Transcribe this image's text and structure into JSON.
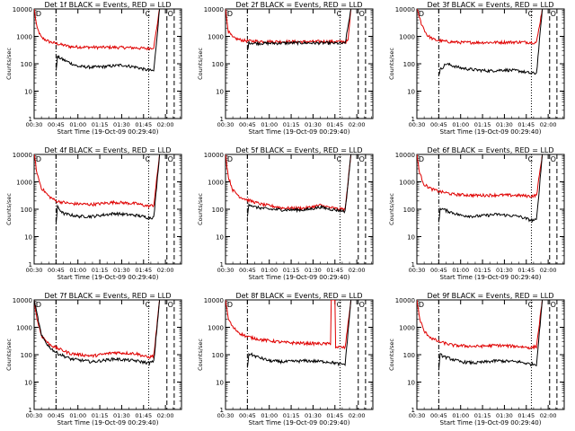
{
  "chart_data": [
    {
      "type": "line",
      "title": "Det 1f BLACK = Events, RED = LLD",
      "xlabel": "Start Time (19-Oct-09 00:29:40)",
      "ylabel": "Counts/sec",
      "x_ticks": [
        "00:30",
        "00:45",
        "01:00",
        "01:15",
        "01:30",
        "01:45",
        "02:00"
      ],
      "y_ticks": [
        "1",
        "10",
        "100",
        "1000",
        "10000"
      ],
      "y_scale": "log",
      "ylim": [
        1,
        10000
      ],
      "xlim_min": [
        30,
        131
      ],
      "corner_markers": [
        "D",
        "C",
        "O"
      ],
      "vertical_markers_min": {
        "dash_dot": 45,
        "dotted": 108.5,
        "dashed": [
          121,
          126
        ]
      },
      "series": [
        {
          "name": "LLD",
          "color": "#e00000",
          "x": [
            30,
            32,
            35,
            40,
            45,
            55,
            70,
            85,
            100,
            108,
            112,
            116
          ],
          "y": [
            10000,
            2000,
            900,
            650,
            550,
            420,
            400,
            400,
            380,
            360,
            400,
            10000
          ]
        },
        {
          "name": "Events",
          "color": "#000000",
          "x": [
            45,
            46,
            50,
            60,
            70,
            80,
            90,
            100,
            107,
            112,
            116
          ],
          "y": [
            60,
            180,
            140,
            80,
            75,
            80,
            90,
            75,
            60,
            55,
            10000
          ]
        }
      ]
    },
    {
      "type": "line",
      "title": "Det 2f BLACK = Events, RED = LLD",
      "xlabel": "Start Time (19-Oct-09 00:29:40)",
      "ylabel": "Counts/sec",
      "x_ticks": [
        "00:30",
        "00:45",
        "01:00",
        "01:15",
        "01:30",
        "01:45",
        "02:00"
      ],
      "y_ticks": [
        "1",
        "10",
        "100",
        "1000",
        "10000"
      ],
      "y_scale": "log",
      "ylim": [
        1,
        10000
      ],
      "xlim_min": [
        30,
        131
      ],
      "corner_markers": [
        "D",
        "C",
        "O"
      ],
      "vertical_markers_min": {
        "dash_dot": 45,
        "dotted": 108.5,
        "dashed": [
          121,
          126
        ]
      },
      "series": [
        {
          "name": "LLD",
          "color": "#e00000",
          "x": [
            30,
            32,
            35,
            40,
            45,
            60,
            80,
            100,
            112,
            114,
            116
          ],
          "y": [
            10000,
            1500,
            900,
            750,
            680,
            650,
            640,
            650,
            640,
            700,
            10000
          ]
        },
        {
          "name": "Events",
          "color": "#000000",
          "x": [
            45,
            46,
            50,
            60,
            80,
            100,
            112,
            116
          ],
          "y": [
            300,
            600,
            560,
            560,
            580,
            570,
            550,
            10000
          ]
        }
      ]
    },
    {
      "type": "line",
      "title": "Det 3f BLACK = Events, RED = LLD",
      "xlabel": "Start Time (19-Oct-09 00:29:40)",
      "ylabel": "Counts/sec",
      "x_ticks": [
        "00:30",
        "00:45",
        "01:00",
        "01:15",
        "01:30",
        "01:45",
        "02:00"
      ],
      "y_ticks": [
        "1",
        "10",
        "100",
        "1000",
        "10000"
      ],
      "y_scale": "log",
      "ylim": [
        1,
        10000
      ],
      "xlim_min": [
        30,
        131
      ],
      "corner_markers": [
        "D",
        "C",
        "O"
      ],
      "vertical_markers_min": {
        "dash_dot": 45,
        "dotted": 108.5,
        "dashed": [
          121,
          126
        ]
      },
      "series": [
        {
          "name": "LLD",
          "color": "#e00000",
          "x": [
            30,
            33,
            37,
            42,
            50,
            60,
            80,
            100,
            112,
            116
          ],
          "y": [
            10000,
            3000,
            1100,
            750,
            650,
            600,
            600,
            620,
            600,
            10000
          ]
        },
        {
          "name": "Events",
          "color": "#000000",
          "x": [
            45,
            46,
            50,
            60,
            70,
            80,
            90,
            100,
            108,
            112,
            116
          ],
          "y": [
            40,
            60,
            100,
            70,
            60,
            55,
            60,
            55,
            45,
            45,
            10000
          ]
        }
      ]
    },
    {
      "type": "line",
      "title": "Det 4f BLACK = Events, RED = LLD",
      "xlabel": "Start Time (19-Oct-09 00:29:40)",
      "ylabel": "Counts/sec",
      "x_ticks": [
        "00:30",
        "00:45",
        "01:00",
        "01:15",
        "01:30",
        "01:45",
        "02:00"
      ],
      "y_ticks": [
        "1",
        "10",
        "100",
        "1000",
        "10000"
      ],
      "y_scale": "log",
      "ylim": [
        1,
        10000
      ],
      "xlim_min": [
        30,
        131
      ],
      "corner_markers": [
        "D",
        "C",
        "O"
      ],
      "vertical_markers_min": {
        "dash_dot": 45,
        "dotted": 108.5,
        "dashed": [
          121,
          126
        ]
      },
      "series": [
        {
          "name": "LLD",
          "color": "#e00000",
          "x": [
            30,
            32,
            35,
            40,
            45,
            55,
            70,
            85,
            100,
            108,
            112,
            116
          ],
          "y": [
            10000,
            2000,
            600,
            300,
            200,
            160,
            150,
            180,
            160,
            130,
            140,
            10000
          ]
        },
        {
          "name": "Events",
          "color": "#000000",
          "x": [
            45,
            46,
            50,
            60,
            70,
            85,
            100,
            108,
            112,
            116
          ],
          "y": [
            30,
            120,
            70,
            55,
            55,
            70,
            60,
            50,
            50,
            10000
          ]
        }
      ]
    },
    {
      "type": "line",
      "title": "Det 5f BLACK = Events, RED = LLD",
      "xlabel": "Start Time (19-Oct-09 00:29:40)",
      "ylabel": "Counts/sec",
      "x_ticks": [
        "00:30",
        "00:45",
        "01:00",
        "01:15",
        "01:30",
        "01:45",
        "02:00"
      ],
      "y_ticks": [
        "1",
        "10",
        "100",
        "1000",
        "10000"
      ],
      "y_scale": "log",
      "ylim": [
        1,
        10000
      ],
      "xlim_min": [
        30,
        131
      ],
      "corner_markers": [
        "D",
        "C",
        "O"
      ],
      "vertical_markers_min": {
        "dash_dot": 45,
        "dotted": 108.5,
        "dashed": [
          121,
          126
        ]
      },
      "series": [
        {
          "name": "LLD",
          "color": "#e00000",
          "x": [
            30,
            32,
            35,
            40,
            45,
            55,
            70,
            85,
            95,
            100,
            108,
            112,
            116
          ],
          "y": [
            10000,
            1500,
            500,
            280,
            220,
            150,
            110,
            110,
            140,
            120,
            100,
            100,
            10000
          ]
        },
        {
          "name": "Events",
          "color": "#000000",
          "x": [
            45,
            46,
            50,
            60,
            70,
            85,
            95,
            100,
            108,
            112,
            116
          ],
          "y": [
            50,
            160,
            120,
            100,
            95,
            95,
            120,
            105,
            90,
            85,
            10000
          ]
        }
      ]
    },
    {
      "type": "line",
      "title": "Det 6f BLACK = Events, RED = LLD",
      "xlabel": "Start Time (19-Oct-09 00:29:40)",
      "ylabel": "Counts/sec",
      "x_ticks": [
        "00:30",
        "00:45",
        "01:00",
        "01:15",
        "01:30",
        "01:45",
        "02:00"
      ],
      "y_ticks": [
        "1",
        "10",
        "100",
        "1000",
        "10000"
      ],
      "y_scale": "log",
      "ylim": [
        1,
        10000
      ],
      "xlim_min": [
        30,
        131
      ],
      "corner_markers": [
        "D",
        "C",
        "O"
      ],
      "vertical_markers_min": {
        "dash_dot": 45,
        "dotted": 108.5,
        "dashed": [
          121,
          126
        ]
      },
      "series": [
        {
          "name": "LLD",
          "color": "#e00000",
          "x": [
            30,
            32,
            35,
            40,
            45,
            55,
            70,
            85,
            100,
            108,
            112,
            116
          ],
          "y": [
            10000,
            2000,
            800,
            550,
            450,
            350,
            320,
            330,
            320,
            300,
            320,
            10000
          ]
        },
        {
          "name": "Events",
          "color": "#000000",
          "x": [
            45,
            46,
            50,
            60,
            70,
            85,
            100,
            108,
            112,
            116
          ],
          "y": [
            30,
            110,
            90,
            60,
            55,
            65,
            55,
            40,
            40,
            10000
          ]
        }
      ]
    },
    {
      "type": "line",
      "title": "Det 7f BLACK = Events, RED = LLD",
      "xlabel": "Start Time (19-Oct-09 00:29:40)",
      "ylabel": "Counts/sec",
      "x_ticks": [
        "00:30",
        "00:45",
        "01:00",
        "01:15",
        "01:30",
        "01:45",
        "02:00"
      ],
      "y_ticks": [
        "1",
        "10",
        "100",
        "1000",
        "10000"
      ],
      "y_scale": "log",
      "ylim": [
        1,
        10000
      ],
      "xlim_min": [
        30,
        131
      ],
      "corner_markers": [
        "D",
        "C",
        "O"
      ],
      "vertical_markers_min": {
        "dash_dot": 45,
        "dotted": 108.5,
        "dashed": [
          121,
          126
        ]
      },
      "series": [
        {
          "name": "LLD",
          "color": "#e00000",
          "x": [
            30,
            32,
            35,
            40,
            45,
            55,
            70,
            85,
            100,
            108,
            112,
            116
          ],
          "y": [
            10000,
            2000,
            500,
            250,
            180,
            110,
            90,
            120,
            110,
            80,
            90,
            10000
          ]
        },
        {
          "name": "Events",
          "color": "#000000",
          "x": [
            30,
            35,
            40,
            45,
            55,
            70,
            85,
            100,
            108,
            112,
            116
          ],
          "y": [
            10000,
            500,
            200,
            120,
            70,
            55,
            70,
            60,
            50,
            55,
            10000
          ]
        }
      ]
    },
    {
      "type": "line",
      "title": "Det 8f BLACK = Events, RED = LLD",
      "xlabel": "Start Time (19-Oct-09 00:29:40)",
      "ylabel": "Counts/sec",
      "x_ticks": [
        "00:30",
        "00:45",
        "01:00",
        "01:15",
        "01:30",
        "01:45",
        "02:00"
      ],
      "y_ticks": [
        "1",
        "10",
        "100",
        "1000",
        "10000"
      ],
      "y_scale": "log",
      "ylim": [
        1,
        10000
      ],
      "xlim_min": [
        30,
        131
      ],
      "corner_markers": [
        "D",
        "C",
        "O"
      ],
      "vertical_markers_min": {
        "dash_dot": 45,
        "dotted": 108.5,
        "dashed": [
          121,
          126
        ]
      },
      "series": [
        {
          "name": "LLD",
          "color": "#e00000",
          "x": [
            30,
            32,
            35,
            40,
            45,
            55,
            70,
            85,
            100,
            102,
            102.5,
            104,
            105,
            105.5,
            112,
            116
          ],
          "y": [
            10000,
            2000,
            1000,
            600,
            450,
            350,
            280,
            260,
            250,
            250,
            10000,
            10000,
            10000,
            190,
            180,
            10000
          ]
        },
        {
          "name": "Events",
          "color": "#000000",
          "x": [
            45,
            46,
            50,
            60,
            70,
            85,
            100,
            105,
            108,
            112,
            116
          ],
          "y": [
            30,
            110,
            90,
            60,
            55,
            60,
            55,
            50,
            45,
            45,
            10000
          ]
        }
      ]
    },
    {
      "type": "line",
      "title": "Det 9f BLACK = Events, RED = LLD",
      "xlabel": "Start Time (19-Oct-09 00:29:40)",
      "ylabel": "Counts/sec",
      "x_ticks": [
        "00:30",
        "00:45",
        "01:00",
        "01:15",
        "01:30",
        "01:45",
        "02:00"
      ],
      "y_ticks": [
        "1",
        "10",
        "100",
        "1000",
        "10000"
      ],
      "y_scale": "log",
      "ylim": [
        1,
        10000
      ],
      "xlim_min": [
        30,
        131
      ],
      "corner_markers": [
        "D",
        "C",
        "O"
      ],
      "vertical_markers_min": {
        "dash_dot": 45,
        "dotted": 108.5,
        "dashed": [
          121,
          126
        ]
      },
      "series": [
        {
          "name": "LLD",
          "color": "#e00000",
          "x": [
            30,
            32,
            35,
            40,
            45,
            55,
            70,
            85,
            100,
            108,
            112,
            116
          ],
          "y": [
            10000,
            2000,
            700,
            400,
            300,
            220,
            200,
            220,
            200,
            180,
            200,
            10000
          ]
        },
        {
          "name": "Events",
          "color": "#000000",
          "x": [
            45,
            46,
            50,
            60,
            70,
            85,
            100,
            108,
            112,
            116
          ],
          "y": [
            30,
            100,
            80,
            55,
            50,
            60,
            55,
            45,
            45,
            10000
          ]
        }
      ]
    }
  ]
}
